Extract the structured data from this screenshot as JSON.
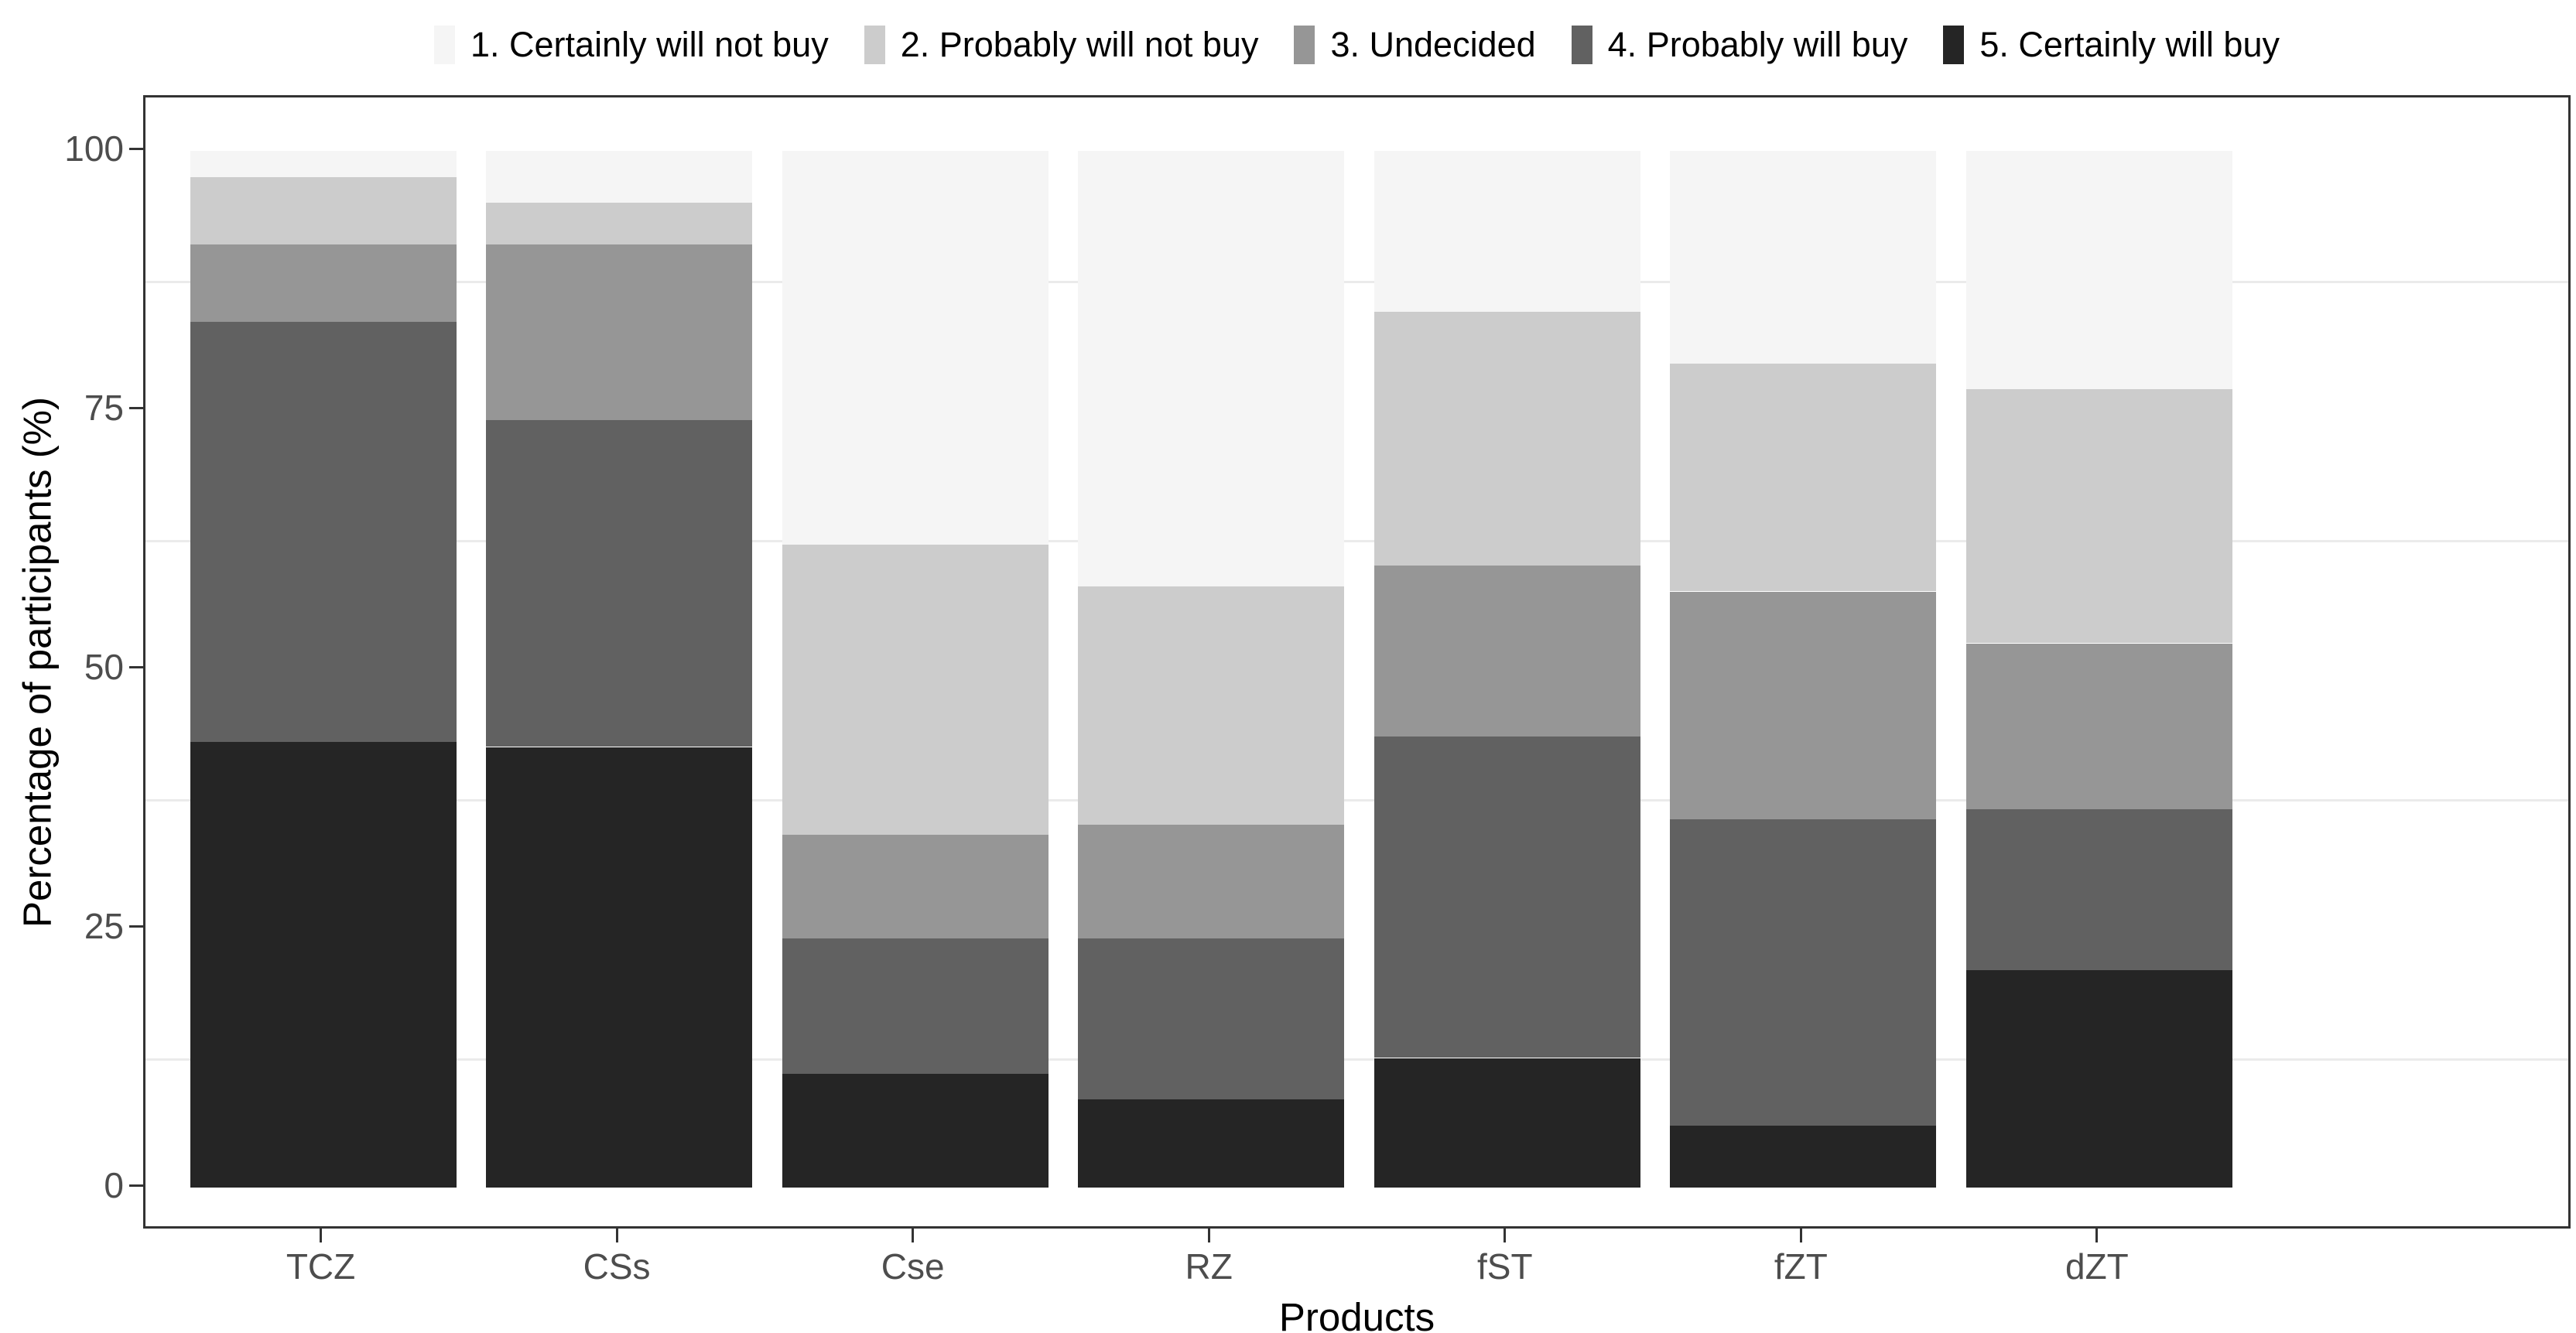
{
  "chart_data": {
    "type": "bar",
    "subtype": "stacked-percentage",
    "title": "",
    "xlabel": "Products",
    "ylabel": "Percentage of participants (%)",
    "categories": [
      "TCZ",
      "CSs",
      "Cse",
      "RZ",
      "fST",
      "fZT",
      "dZT"
    ],
    "series": [
      {
        "name": "1. Certainly will not buy",
        "color": "#F5F5F5",
        "values": [
          2.5,
          5,
          38,
          42,
          15.5,
          20.5,
          23
        ]
      },
      {
        "name": "2. Probably will not buy",
        "color": "#CCCCCC",
        "values": [
          6.5,
          4,
          28,
          23,
          24.5,
          22,
          24.5
        ]
      },
      {
        "name": "3. Undecided",
        "color": "#969696",
        "values": [
          7.5,
          17,
          10,
          11,
          16.5,
          22,
          16
        ]
      },
      {
        "name": "4. Probably will buy",
        "color": "#616161",
        "values": [
          40.5,
          31.5,
          13,
          15.5,
          31,
          29.5,
          15.5
        ]
      },
      {
        "name": "5. Certainly will buy",
        "color": "#252525",
        "values": [
          43,
          42.5,
          11,
          8.5,
          12.5,
          6,
          21
        ]
      }
    ],
    "y_ticks": [
      0,
      25,
      50,
      75,
      100
    ],
    "ylim": [
      0,
      100
    ],
    "minor_gridlines": [
      12.5,
      37.5,
      62.5,
      87.5
    ],
    "legend_position": "top",
    "grid": "minor-only",
    "colors": {
      "axis_text": "#4D4D4D",
      "axis_title": "#000000",
      "panel_border": "#333333",
      "gridline": "#EBEBEB",
      "tick_mark": "#333333",
      "background": "#FFFFFF"
    }
  }
}
